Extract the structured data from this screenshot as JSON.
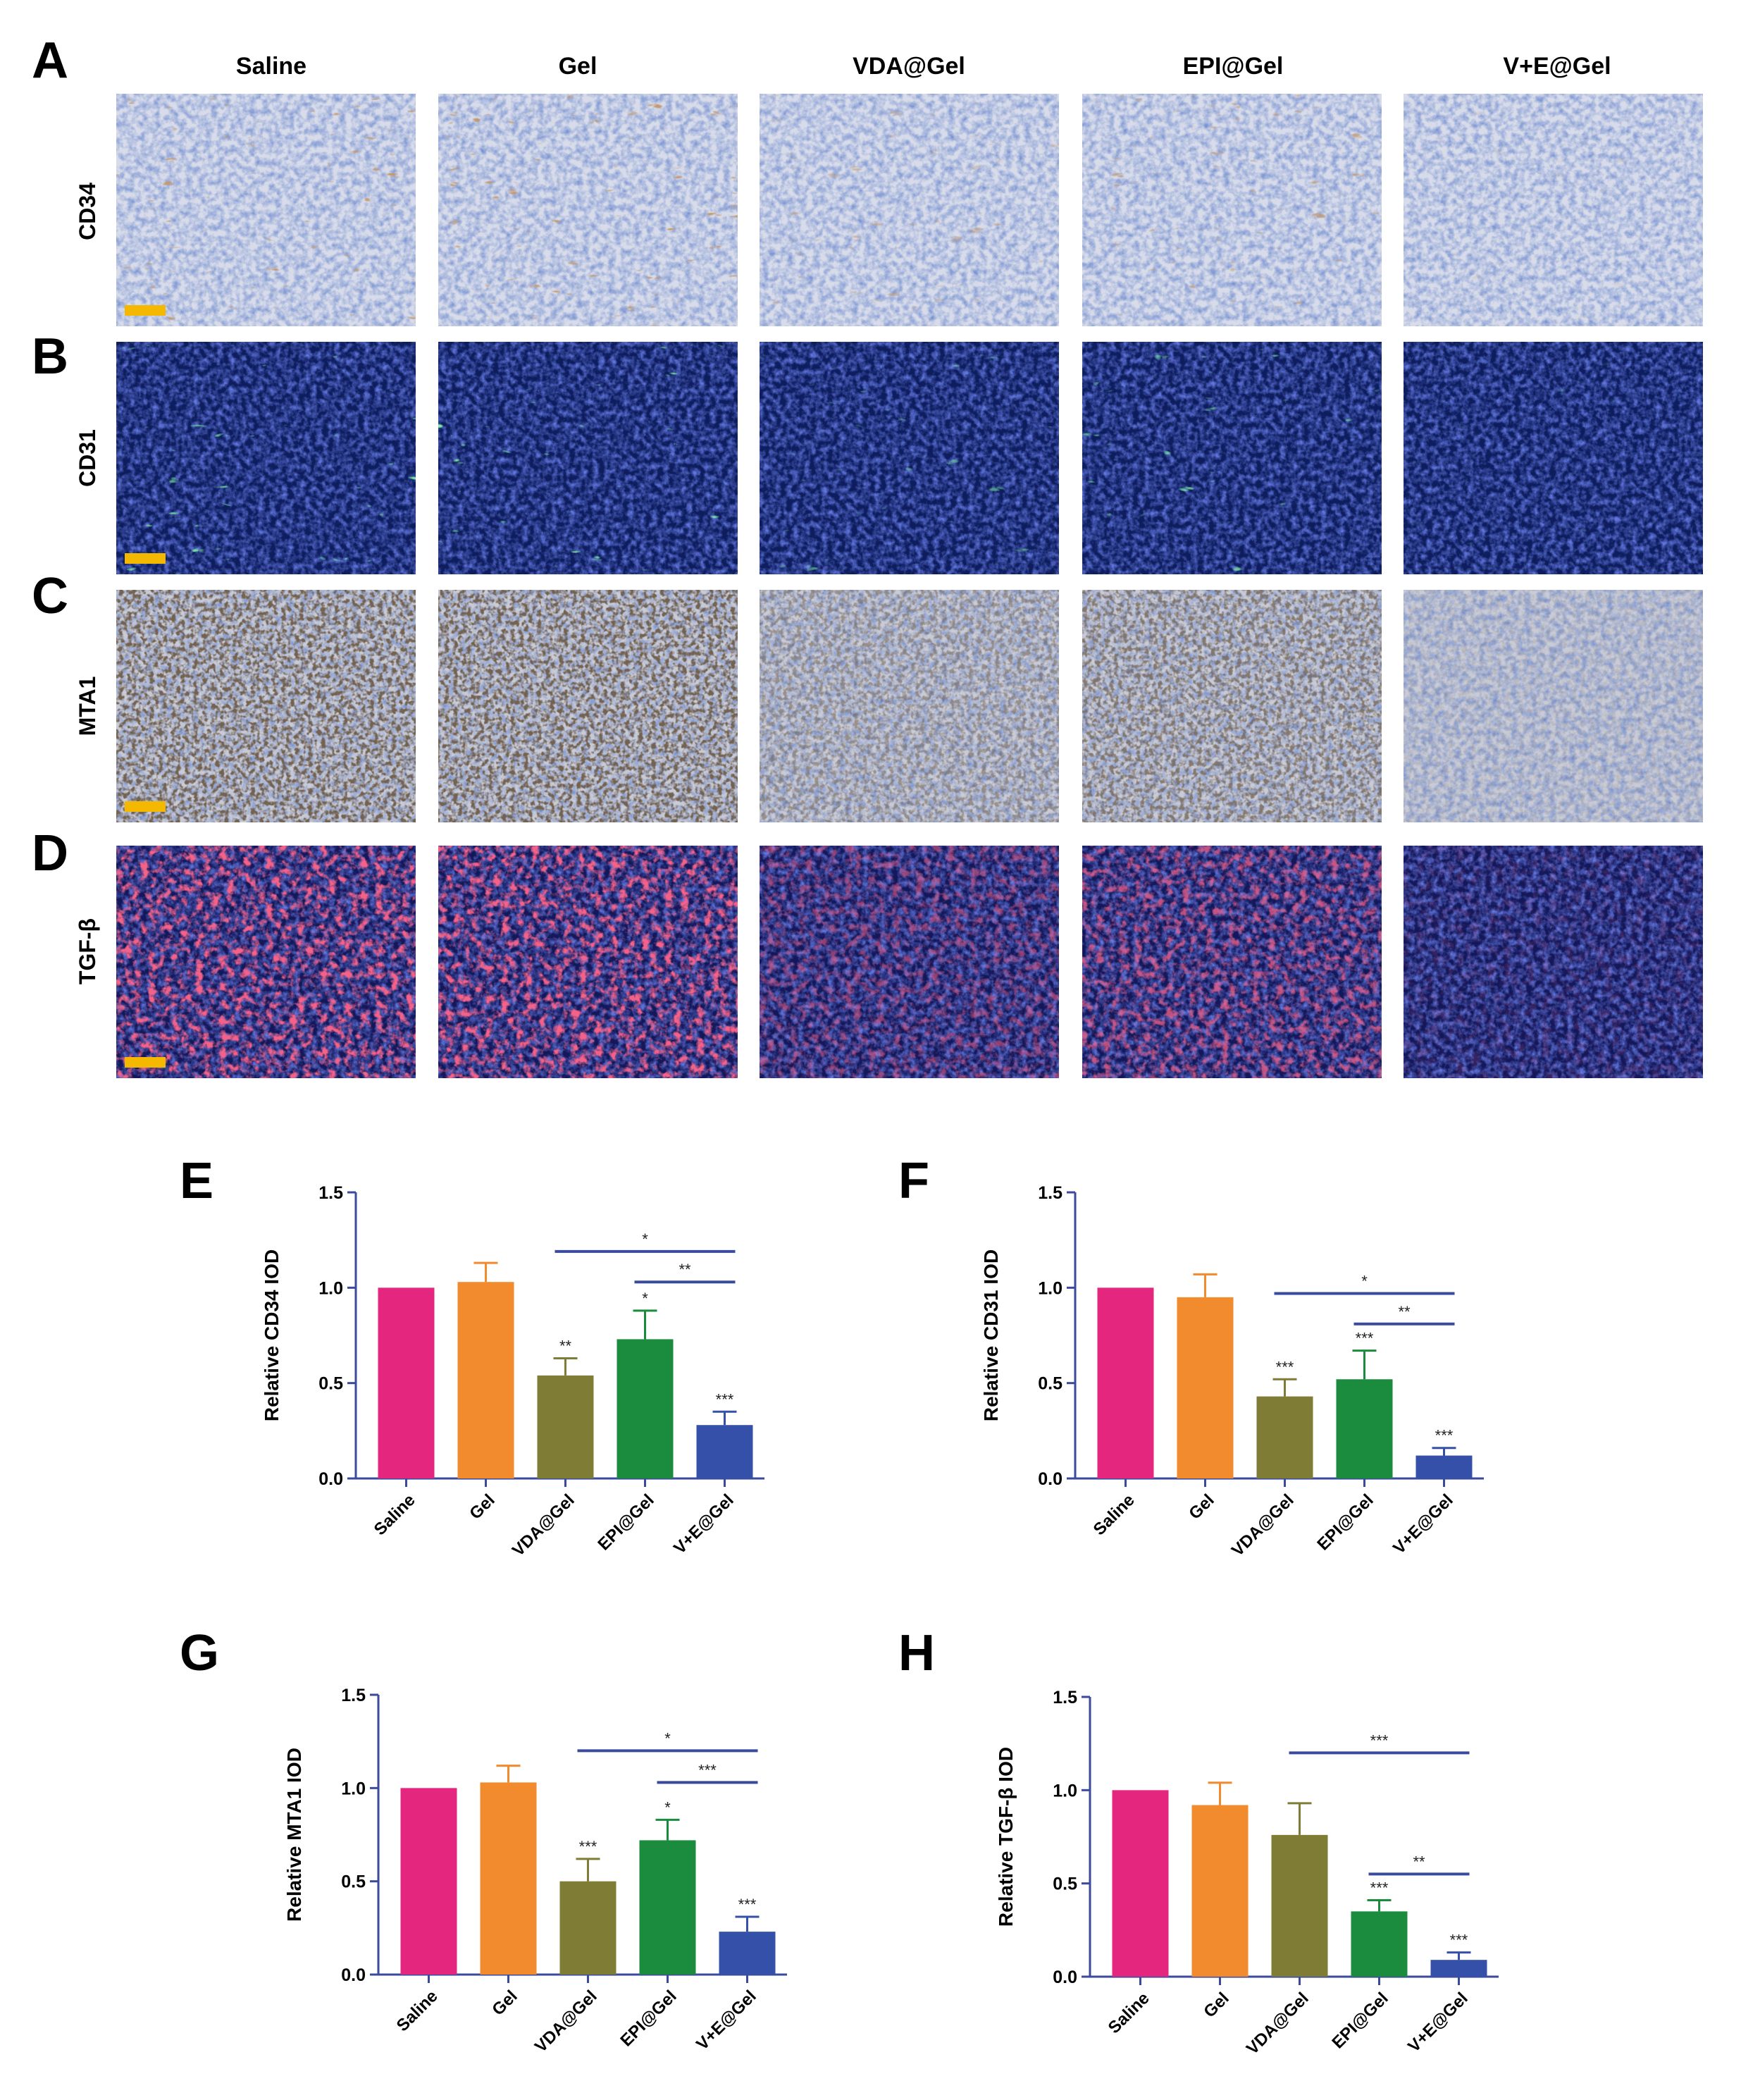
{
  "panel_letters": [
    "A",
    "B",
    "C",
    "D",
    "E",
    "F",
    "G",
    "H"
  ],
  "groups": [
    "Saline",
    "Gel",
    "VDA@Gel",
    "EPI@Gel",
    "V+E@Gel"
  ],
  "micro_rows": [
    {
      "letter": "A",
      "marker": "CD34",
      "stain": "ihc-brown"
    },
    {
      "letter": "B",
      "marker": "CD31",
      "stain": "if-green"
    },
    {
      "letter": "C",
      "marker": "MTA1",
      "stain": "ihc-nuclear"
    },
    {
      "letter": "D",
      "marker": "TGF-β",
      "stain": "if-red"
    }
  ],
  "colors": {
    "bars": [
      "#e5267f",
      "#f28a2e",
      "#7f7d35",
      "#1b8c3e",
      "#3450a8"
    ],
    "axis": "#3a4a9c",
    "scale_bar": "#f5b800"
  },
  "chart_data": [
    {
      "panel": "E",
      "type": "bar",
      "categories": [
        "Saline",
        "Gel",
        "VDA@Gel",
        "EPI@Gel",
        "V+E@Gel"
      ],
      "values": [
        1.0,
        1.03,
        0.54,
        0.73,
        0.28
      ],
      "errors": [
        0,
        0.1,
        0.09,
        0.15,
        0.07
      ],
      "stars": [
        "",
        "",
        "**",
        "*",
        "***"
      ],
      "comparisons": [
        {
          "from": 2,
          "to": 4,
          "y": 1.19,
          "label": "*"
        },
        {
          "from": 3,
          "to": 4,
          "y": 1.03,
          "label": "**"
        }
      ],
      "ylabel": "Relative CD34 IOD",
      "ylim": [
        0,
        1.5
      ],
      "yticks": [
        "0.0",
        "0.5",
        "1.0",
        "1.5"
      ]
    },
    {
      "panel": "F",
      "type": "bar",
      "categories": [
        "Saline",
        "Gel",
        "VDA@Gel",
        "EPI@Gel",
        "V+E@Gel"
      ],
      "values": [
        1.0,
        0.95,
        0.43,
        0.52,
        0.12
      ],
      "errors": [
        0,
        0.12,
        0.09,
        0.15,
        0.04
      ],
      "stars": [
        "",
        "",
        "***",
        "***",
        "***"
      ],
      "comparisons": [
        {
          "from": 2,
          "to": 4,
          "y": 0.97,
          "label": "*"
        },
        {
          "from": 3,
          "to": 4,
          "y": 0.81,
          "label": "**"
        }
      ],
      "ylabel": "Relative CD31 IOD",
      "ylim": [
        0,
        1.5
      ],
      "yticks": [
        "0.0",
        "0.5",
        "1.0",
        "1.5"
      ]
    },
    {
      "panel": "G",
      "type": "bar",
      "categories": [
        "Saline",
        "Gel",
        "VDA@Gel",
        "EPI@Gel",
        "V+E@Gel"
      ],
      "values": [
        1.0,
        1.03,
        0.5,
        0.72,
        0.23
      ],
      "errors": [
        0,
        0.09,
        0.12,
        0.11,
        0.08
      ],
      "stars": [
        "",
        "",
        "***",
        "*",
        "***"
      ],
      "comparisons": [
        {
          "from": 2,
          "to": 4,
          "y": 1.2,
          "label": "*"
        },
        {
          "from": 3,
          "to": 4,
          "y": 1.03,
          "label": "***"
        }
      ],
      "ylabel": "Relative MTA1 IOD",
      "ylim": [
        0,
        1.5
      ],
      "yticks": [
        "0.0",
        "0.5",
        "1.0",
        "1.5"
      ]
    },
    {
      "panel": "H",
      "type": "bar",
      "categories": [
        "Saline",
        "Gel",
        "VDA@Gel",
        "EPI@Gel",
        "V+E@Gel"
      ],
      "values": [
        1.0,
        0.92,
        0.76,
        0.35,
        0.09
      ],
      "errors": [
        0,
        0.12,
        0.17,
        0.06,
        0.04
      ],
      "stars": [
        "",
        "",
        "",
        "***",
        "***"
      ],
      "comparisons": [
        {
          "from": 2,
          "to": 4,
          "y": 1.2,
          "label": "***"
        },
        {
          "from": 3,
          "to": 4,
          "y": 0.55,
          "label": "**"
        }
      ],
      "ylabel": "Relative TGF-β IOD",
      "ylim": [
        0,
        1.5
      ],
      "yticks": [
        "0.0",
        "0.5",
        "1.0",
        "1.5"
      ]
    }
  ]
}
